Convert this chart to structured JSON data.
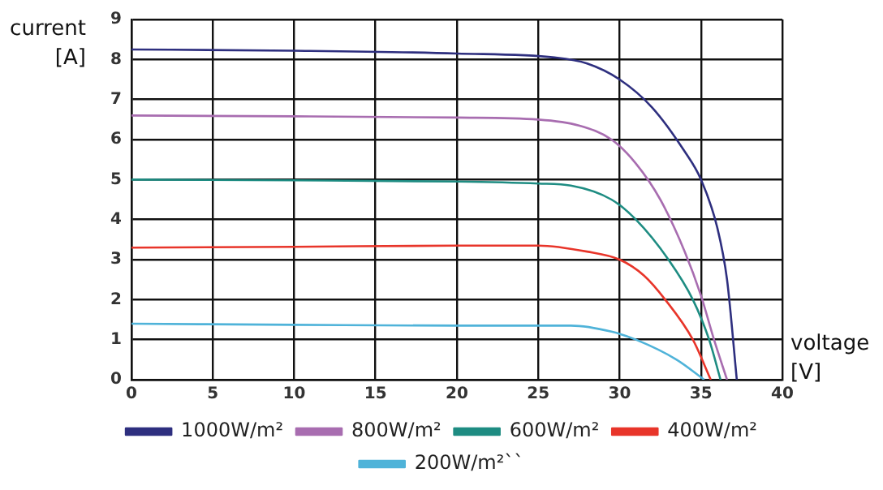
{
  "chart_data": {
    "type": "line",
    "xlabel": "voltage [V]",
    "ylabel": "current [A]",
    "xlim": [
      0,
      40
    ],
    "xticks": [
      0,
      5,
      10,
      15,
      20,
      25,
      30,
      35,
      40
    ],
    "ylim": [
      0,
      9
    ],
    "yticks": [
      0,
      1,
      2,
      3,
      4,
      5,
      6,
      7,
      8,
      9
    ],
    "grid": true,
    "legend": "bottom",
    "marker": "none",
    "line_style": "solid",
    "series": [
      {
        "name": "1000W/m²",
        "color": "#2e2f7f",
        "x": [
          0,
          10,
          20,
          26,
          28,
          30,
          32,
          34,
          35,
          36,
          36.6,
          37.2
        ],
        "values": [
          8.25,
          8.22,
          8.15,
          8.05,
          7.9,
          7.5,
          6.8,
          5.7,
          5,
          3.8,
          2.5,
          0
        ]
      },
      {
        "name": "800W/m²",
        "color": "#a86db0",
        "x": [
          0,
          10,
          20,
          25,
          27.5,
          29.5,
          31,
          32.5,
          34,
          35,
          35.8,
          36.6
        ],
        "values": [
          6.6,
          6.58,
          6.55,
          6.5,
          6.35,
          6,
          5.4,
          4.5,
          3.2,
          2.1,
          1,
          0
        ]
      },
      {
        "name": "600W/m²",
        "color": "#1e8c82",
        "x": [
          0,
          10,
          20,
          25,
          27,
          29.5,
          31,
          33,
          34.5,
          35.5,
          36.2
        ],
        "values": [
          5,
          4.98,
          4.95,
          4.9,
          4.85,
          4.5,
          4,
          3,
          2,
          1,
          0
        ]
      },
      {
        "name": "400W/m²",
        "color": "#e8352a",
        "x": [
          0,
          10,
          20,
          25,
          28,
          30,
          31.5,
          32.8,
          34.5,
          35.6
        ],
        "values": [
          3.3,
          3.32,
          3.35,
          3.35,
          3.2,
          3,
          2.6,
          2,
          1,
          0
        ]
      },
      {
        "name": "200W/m²``",
        "color": "#4fb3d9",
        "x": [
          0,
          10,
          20,
          27,
          29.5,
          31,
          33.5,
          35.2
        ],
        "values": [
          1.4,
          1.37,
          1.35,
          1.35,
          1.2,
          1,
          0.5,
          0
        ]
      }
    ]
  }
}
